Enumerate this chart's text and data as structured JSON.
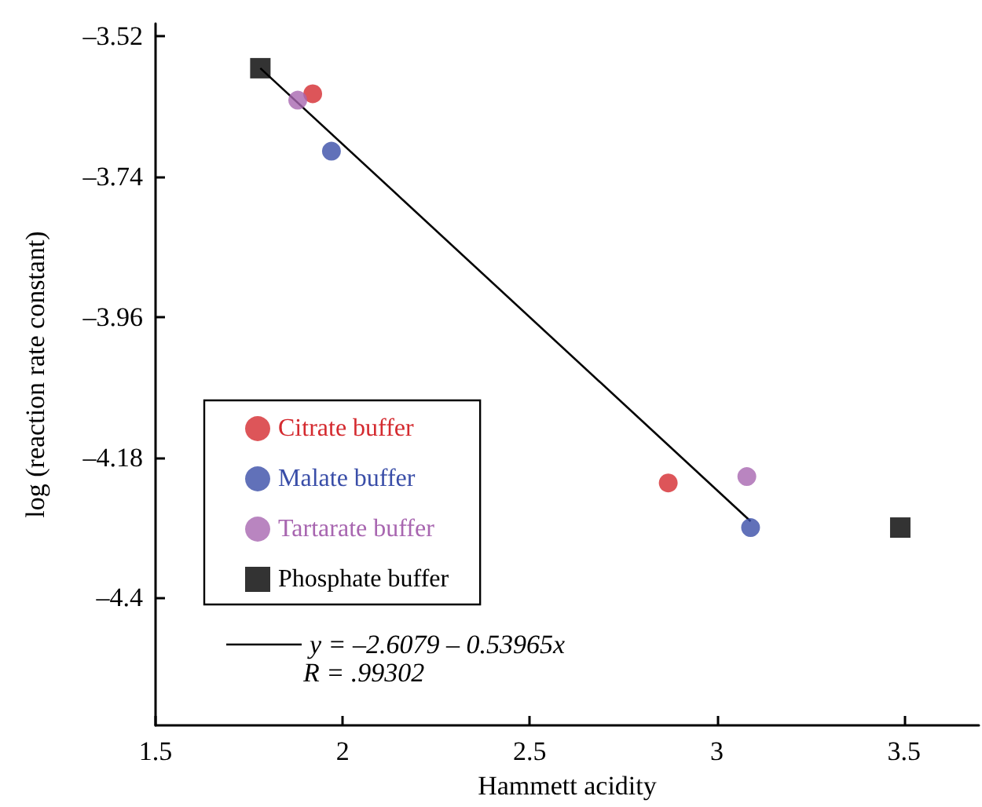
{
  "chart_data": {
    "type": "scatter",
    "xlabel": "Hammett acidity",
    "ylabel": "log (reaction rate constant)",
    "xlim": [
      1.5,
      3.7
    ],
    "xticks": [
      1.5,
      2,
      2.5,
      3,
      3.5
    ],
    "ylim": [
      -4.6,
      -3.5
    ],
    "yticks": [
      {
        "value": -3.52,
        "label": "–3.52"
      },
      {
        "value": -3.74,
        "label": "–3.74"
      },
      {
        "value": -3.96,
        "label": "–3.96"
      },
      {
        "value": -4.18,
        "label": "–4.18"
      },
      {
        "value": -4.4,
        "label": "–4.4"
      }
    ],
    "grid": false,
    "legend": "bottom left",
    "series": [
      {
        "name": "Citrate buffer",
        "color": "#d42a2f",
        "marker": "circle",
        "x": [
          1.92,
          2.87
        ],
        "values": [
          -3.61,
          -4.22
        ]
      },
      {
        "name": "Malate buffer",
        "color": "#3a4ea8",
        "marker": "circle",
        "x": [
          1.97,
          3.09
        ],
        "values": [
          -3.7,
          -4.29
        ]
      },
      {
        "name": "Tartarate buffer",
        "color": "#a866b0",
        "marker": "circle",
        "x": [
          1.88,
          3.08
        ],
        "values": [
          -3.62,
          -4.21
        ]
      },
      {
        "name": "Phosphate buffer",
        "color": "#000000",
        "marker": "square",
        "x": [
          1.78,
          3.49
        ],
        "values": [
          -3.57,
          -4.29
        ]
      },
      {
        "name": "y = –2.6079 – 0.53965x",
        "type": "line",
        "color": "#000000",
        "marker": "none",
        "line_style": "solid",
        "x": [
          1.78,
          3.09
        ],
        "values": [
          -3.57,
          -4.28
        ]
      }
    ],
    "annotations": [
      "R = .99302"
    ]
  }
}
